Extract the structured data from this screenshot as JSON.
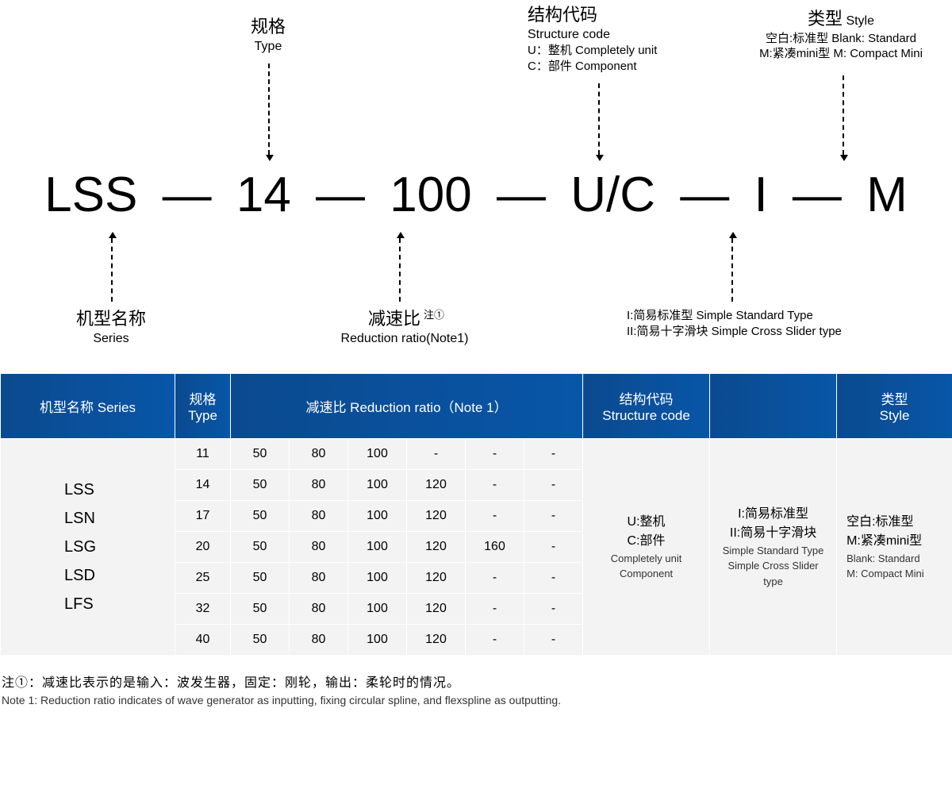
{
  "diagram": {
    "code_segments": [
      "LSS",
      "14",
      "100",
      "U/C",
      "I",
      "M"
    ],
    "dash": "—",
    "annotations": {
      "type": {
        "cn": "规格",
        "en": "Type"
      },
      "structure": {
        "title_cn": "结构代码",
        "title_en": "Structure code",
        "line1": "U：整机 Completely unit",
        "line2": "C：部件 Component"
      },
      "style": {
        "title_cn": "类型",
        "title_en": "Style",
        "line1": "空白:标准型 Blank: Standard",
        "line2": "M:紧凑mini型 M: Compact Mini"
      },
      "series": {
        "cn": "机型名称",
        "en": "Series"
      },
      "ratio": {
        "cn": "减速比",
        "sup": "注①",
        "en": "Reduction ratio(Note1)"
      },
      "itype": {
        "line1": "I:简易标准型 Simple Standard Type",
        "line2": "II:简易十字滑块 Simple Cross Slider type"
      }
    }
  },
  "table": {
    "headers": {
      "series": "机型名称 Series",
      "type": "规格\nType",
      "ratio": "减速比 Reduction ratio（Note 1）",
      "structure": "结构代码\nStructure code",
      "blank": "",
      "style": "类型\nStyle"
    },
    "series_list": [
      "LSS",
      "LSN",
      "LSG",
      "LSD",
      "LFS"
    ],
    "rows": [
      {
        "type": "11",
        "ratios": [
          "50",
          "80",
          "100",
          "-",
          "-",
          "-"
        ]
      },
      {
        "type": "14",
        "ratios": [
          "50",
          "80",
          "100",
          "120",
          "-",
          "-"
        ]
      },
      {
        "type": "17",
        "ratios": [
          "50",
          "80",
          "100",
          "120",
          "-",
          "-"
        ]
      },
      {
        "type": "20",
        "ratios": [
          "50",
          "80",
          "100",
          "120",
          "160",
          "-"
        ]
      },
      {
        "type": "25",
        "ratios": [
          "50",
          "80",
          "100",
          "120",
          "-",
          "-"
        ]
      },
      {
        "type": "32",
        "ratios": [
          "50",
          "80",
          "100",
          "120",
          "-",
          "-"
        ]
      },
      {
        "type": "40",
        "ratios": [
          "50",
          "80",
          "100",
          "120",
          "-",
          "-"
        ]
      }
    ],
    "structure_block": {
      "cn1": "U:整机",
      "cn2": "C:部件",
      "en1": "Completely unit",
      "en2": "Component"
    },
    "i_block": {
      "cn1": "I:简易标准型",
      "cn2": "II:简易十字滑块",
      "en1": "Simple Standard Type",
      "en2": "Simple Cross Slider type"
    },
    "style_block": {
      "cn1": "空白:标准型",
      "cn2": "M:紧凑mini型",
      "en1": "Blank: Standard",
      "en2": "M: Compact Mini"
    }
  },
  "footnote": {
    "cn": "注①：减速比表示的是输入：波发生器，固定：刚轮，输出：柔轮时的情况。",
    "en": "Note 1: Reduction ratio indicates of wave generator as inputting, fixing circular spline, and flexspline as outputting."
  },
  "colors": {
    "header_bg": "#0b4a8f",
    "cell_bg": "#f3f3f4",
    "text": "#000000"
  }
}
